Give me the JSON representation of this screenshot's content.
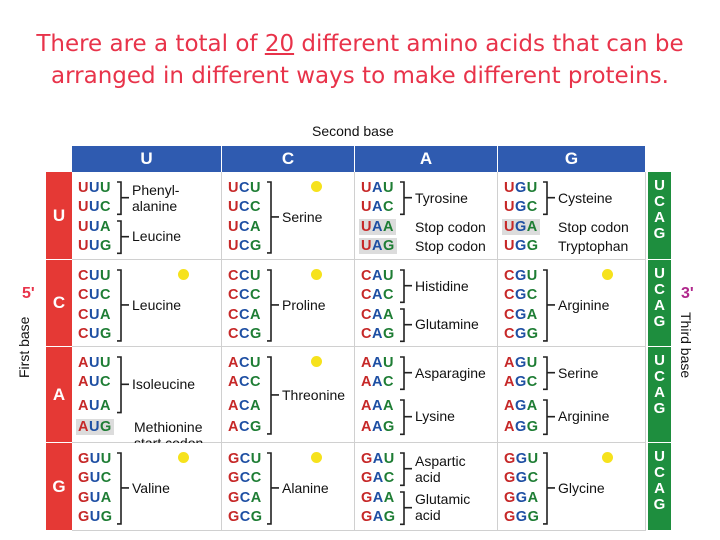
{
  "title": {
    "before": "There are a total of ",
    "number": "20",
    "after": " different amino acids that can be",
    "line2": "arranged in different ways to make different proteins."
  },
  "labels": {
    "second_base": "Second base",
    "first_base": "First base",
    "third_base": "Third base",
    "five_prime": "5'",
    "three_prime": "3'"
  },
  "bases": [
    "U",
    "C",
    "A",
    "G"
  ],
  "colors": {
    "title": "#e8334a",
    "header": "#2f5bb0",
    "first": "#e53935",
    "third": "#1e8e3e",
    "dot": "#f6e21c"
  },
  "rows": [
    {
      "base": "U",
      "cells": [
        {
          "codons": [
            "UUU",
            "UUC",
            "UUA",
            "UUG"
          ],
          "dot": false,
          "groups": [
            {
              "label": "Phenyl-\nalanine",
              "from": 0,
              "to": 1
            },
            {
              "label": "Leucine",
              "from": 2,
              "to": 3
            }
          ]
        },
        {
          "codons": [
            "UCU",
            "UCC",
            "UCA",
            "UCG"
          ],
          "dot": true,
          "groups": [
            {
              "label": "Serine",
              "from": 0,
              "to": 3
            }
          ]
        },
        {
          "codons": [
            "UAU",
            "UAC",
            "UAA",
            "UAG"
          ],
          "dot": false,
          "highlight": [
            2,
            3
          ],
          "groups": [
            {
              "label": "Tyrosine",
              "from": 0,
              "to": 1
            }
          ],
          "plain": [
            {
              "label": "Stop codon",
              "at": 2
            },
            {
              "label": "Stop codon",
              "at": 3
            }
          ]
        },
        {
          "codons": [
            "UGU",
            "UGC",
            "UGA",
            "UGG"
          ],
          "dot": false,
          "highlight": [
            2
          ],
          "groups": [
            {
              "label": "Cysteine",
              "from": 0,
              "to": 1
            }
          ],
          "plain": [
            {
              "label": "Stop codon",
              "at": 2
            },
            {
              "label": "Tryptophan",
              "at": 3
            }
          ]
        }
      ]
    },
    {
      "base": "C",
      "cells": [
        {
          "codons": [
            "CUU",
            "CUC",
            "CUA",
            "CUG"
          ],
          "dot": true,
          "groups": [
            {
              "label": "Leucine",
              "from": 0,
              "to": 3
            }
          ]
        },
        {
          "codons": [
            "CCU",
            "CCC",
            "CCA",
            "CCG"
          ],
          "dot": true,
          "groups": [
            {
              "label": "Proline",
              "from": 0,
              "to": 3
            }
          ]
        },
        {
          "codons": [
            "CAU",
            "CAC",
            "CAA",
            "CAG"
          ],
          "dot": false,
          "groups": [
            {
              "label": "Histidine",
              "from": 0,
              "to": 1
            },
            {
              "label": "Glutamine",
              "from": 2,
              "to": 3
            }
          ]
        },
        {
          "codons": [
            "CGU",
            "CGC",
            "CGA",
            "CGG"
          ],
          "dot": true,
          "groups": [
            {
              "label": "Arginine",
              "from": 0,
              "to": 3
            }
          ]
        }
      ]
    },
    {
      "base": "A",
      "cells": [
        {
          "codons": [
            "AUU",
            "AUC",
            "AUA",
            "AUG"
          ],
          "dot": false,
          "highlight": [
            3
          ],
          "groups": [
            {
              "label": "Isoleucine",
              "from": 0,
              "to": 2
            }
          ],
          "plain": [
            {
              "label": "Methionine\nstart codon",
              "at": 3
            }
          ]
        },
        {
          "codons": [
            "ACU",
            "ACC",
            "ACA",
            "ACG"
          ],
          "dot": true,
          "groups": [
            {
              "label": "Threonine",
              "from": 0,
              "to": 3
            }
          ]
        },
        {
          "codons": [
            "AAU",
            "AAC",
            "AAA",
            "AAG"
          ],
          "dot": false,
          "groups": [
            {
              "label": "Asparagine",
              "from": 0,
              "to": 1
            },
            {
              "label": "Lysine",
              "from": 2,
              "to": 3
            }
          ]
        },
        {
          "codons": [
            "AGU",
            "AGC",
            "AGA",
            "AGG"
          ],
          "dot": false,
          "groups": [
            {
              "label": "Serine",
              "from": 0,
              "to": 1
            },
            {
              "label": "Arginine",
              "from": 2,
              "to": 3
            }
          ]
        }
      ]
    },
    {
      "base": "G",
      "cells": [
        {
          "codons": [
            "GUU",
            "GUC",
            "GUA",
            "GUG"
          ],
          "dot": true,
          "groups": [
            {
              "label": "Valine",
              "from": 0,
              "to": 3
            }
          ]
        },
        {
          "codons": [
            "GCU",
            "GCC",
            "GCA",
            "GCG"
          ],
          "dot": true,
          "groups": [
            {
              "label": "Alanine",
              "from": 0,
              "to": 3
            }
          ]
        },
        {
          "codons": [
            "GAU",
            "GAC",
            "GAA",
            "GAG"
          ],
          "dot": false,
          "groups": [
            {
              "label": "Aspartic\nacid",
              "from": 0,
              "to": 1
            },
            {
              "label": "Glutamic\nacid",
              "from": 2,
              "to": 3
            }
          ]
        },
        {
          "codons": [
            "GGU",
            "GGC",
            "GGA",
            "GGG"
          ],
          "dot": true,
          "groups": [
            {
              "label": "Glycine",
              "from": 0,
              "to": 3
            }
          ]
        }
      ]
    }
  ]
}
